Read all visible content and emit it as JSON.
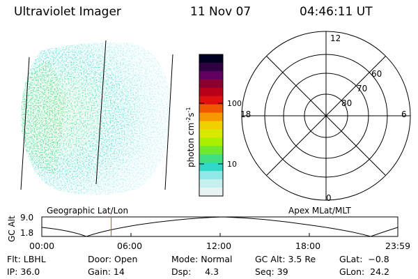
{
  "header": {
    "instrument": "Ultraviolet Imager",
    "date": "11 Nov 07",
    "time": "04:46:11 UT"
  },
  "colorbar": {
    "label_base": "photon cm",
    "label_exp1": "-2",
    "label_mid": "s",
    "label_exp2": "-1",
    "tick_labels": [
      "100",
      "10"
    ],
    "colors": [
      "#000020",
      "#300040",
      "#600060",
      "#8c0030",
      "#b80018",
      "#e01010",
      "#f05800",
      "#f89800",
      "#f0d000",
      "#d8e800",
      "#a8f000",
      "#70e830",
      "#40e080",
      "#30d8c8",
      "#90e8e8",
      "#c8f0f0",
      "#e8f4f4"
    ]
  },
  "polar_plot": {
    "mlt_labels": {
      "top": "12",
      "left": "18",
      "right": "6",
      "bottom": "0"
    },
    "lat_labels": [
      "80",
      "70",
      "60"
    ]
  },
  "orbit_panel": {
    "left_title": "Geographic Lat/Lon",
    "right_title": "Apex MLat/MLT",
    "y_label": "GC Alt",
    "y_ticks": [
      "9.0",
      "1.8"
    ],
    "x_ticks": [
      "00:00",
      "06:00",
      "12:00",
      "18:00",
      "23:59"
    ],
    "current_time_fraction": 0.195
  },
  "status": {
    "filter": "Flt: LBHL",
    "ip": "IP: 36.0",
    "door": "Door: Open",
    "gain": "Gain: 14",
    "mode": "Mode: Normal",
    "dsp": "Dsp:     4.3",
    "gc_alt": "GC Alt: 3.5 Re",
    "seq": "Seq: 39",
    "glat": "GLat:  −0.8",
    "glon": "GLon:  24.2"
  }
}
